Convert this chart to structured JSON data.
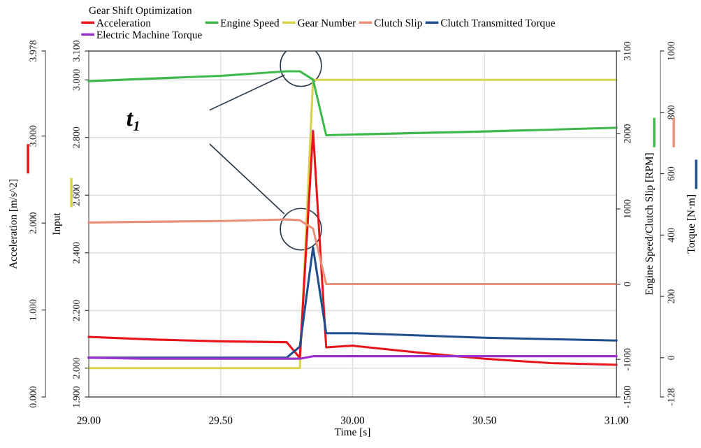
{
  "chart_data": [
    {
      "type": "line",
      "title": "Gear Shift Optimization",
      "xlabel": "Time [s]",
      "ylabel": "Input",
      "y2label": "Acceleration [m/s^2]",
      "y3label": "Engine Speed/Clutch Slip [RPM]",
      "xlim": [
        29,
        31
      ],
      "xticks": [
        {
          "value": 29,
          "label": "29.00"
        },
        {
          "value": 29.5,
          "label": "29.50"
        },
        {
          "value": 30,
          "label": "30.00"
        },
        {
          "value": 30.5,
          "label": "30.50"
        },
        {
          "value": 31,
          "label": "31.00"
        }
      ],
      "ylim": [
        1.9,
        3.1
      ],
      "yticks": [
        {
          "value": 1.9,
          "label": "1.900"
        },
        {
          "value": 2.0,
          "label": "2.000"
        },
        {
          "value": 2.2,
          "label": "2.200"
        },
        {
          "value": 2.4,
          "label": "2.400"
        },
        {
          "value": 2.6,
          "label": "2.600"
        },
        {
          "value": 2.8,
          "label": "2.800"
        },
        {
          "value": 3.0,
          "label": "3.000"
        },
        {
          "value": 3.1,
          "label": "3.100"
        }
      ],
      "y2lim": [
        0,
        3.978
      ],
      "y2ticks": [
        {
          "value": 0,
          "label": "0.000"
        },
        {
          "value": 1,
          "label": "1.000"
        },
        {
          "value": 2,
          "label": "2.000"
        },
        {
          "value": 3,
          "label": "3.000"
        },
        {
          "value": 3.978,
          "label": "3.978"
        }
      ],
      "y3lim": [
        -1500,
        3100
      ],
      "y3ticks": [
        -1500,
        -1000,
        0,
        1000,
        2000,
        3100
      ],
      "grid": true,
      "legend": "top left",
      "marker": "none",
      "line_style": "solid",
      "annotations": [
        "t₁"
      ],
      "series": [
        {
          "name": "Acceleration",
          "color": "#e8141c",
          "axis": "y2",
          "x": [
            29.0,
            29.25,
            29.5,
            29.75,
            29.8,
            29.85,
            29.9,
            30.0,
            30.25,
            30.5,
            30.75,
            31.0
          ],
          "values": [
            0.69,
            0.66,
            0.64,
            0.63,
            0.45,
            3.06,
            0.57,
            0.59,
            0.51,
            0.44,
            0.39,
            0.37
          ]
        },
        {
          "name": "Engine Speed",
          "color": "#3cb94a",
          "axis": "y3",
          "x": [
            29.0,
            29.5,
            29.75,
            29.8,
            29.85,
            29.9,
            30.0,
            30.5,
            31.0
          ],
          "values": [
            2700,
            2770,
            2830,
            2830,
            2720,
            1980,
            1990,
            2030,
            2080
          ]
        },
        {
          "name": "Gear Number",
          "color": "#d6d24a",
          "x": [
            29.0,
            29.8,
            29.85,
            31.0
          ],
          "values": [
            2.0,
            2.0,
            3.0,
            3.0
          ]
        },
        {
          "name": "Clutch Slip",
          "color": "#e8907a",
          "axis": "y3",
          "x": [
            29.0,
            29.5,
            29.75,
            29.8,
            29.85,
            29.9,
            31.0
          ],
          "values": [
            820,
            840,
            860,
            850,
            740,
            0,
            0
          ]
        }
      ]
    },
    {
      "type": "line",
      "ylabel": "Torque [N·m]",
      "xlim": [
        29,
        31
      ],
      "ylim": [
        -128,
        1000
      ],
      "yticks": [
        -128,
        0,
        200,
        400,
        600,
        800,
        1000
      ],
      "tick_labels": "y",
      "legend": "top left",
      "marker": "none",
      "line_style": "solid",
      "series": [
        {
          "name": "Clutch Transmitted Torque",
          "color": "#1f4e8c",
          "x": [
            29.0,
            29.75,
            29.8,
            29.85,
            29.9,
            30.0,
            30.5,
            31.0
          ],
          "values": [
            0,
            0,
            36,
            360,
            80,
            80,
            65,
            56
          ]
        },
        {
          "name": "Electric Machine Torque",
          "color": "#9b30d0",
          "x": [
            29.0,
            29.2,
            29.8,
            29.85,
            31.0
          ],
          "values": [
            0,
            -3,
            -3,
            5,
            5
          ]
        }
      ]
    }
  ]
}
